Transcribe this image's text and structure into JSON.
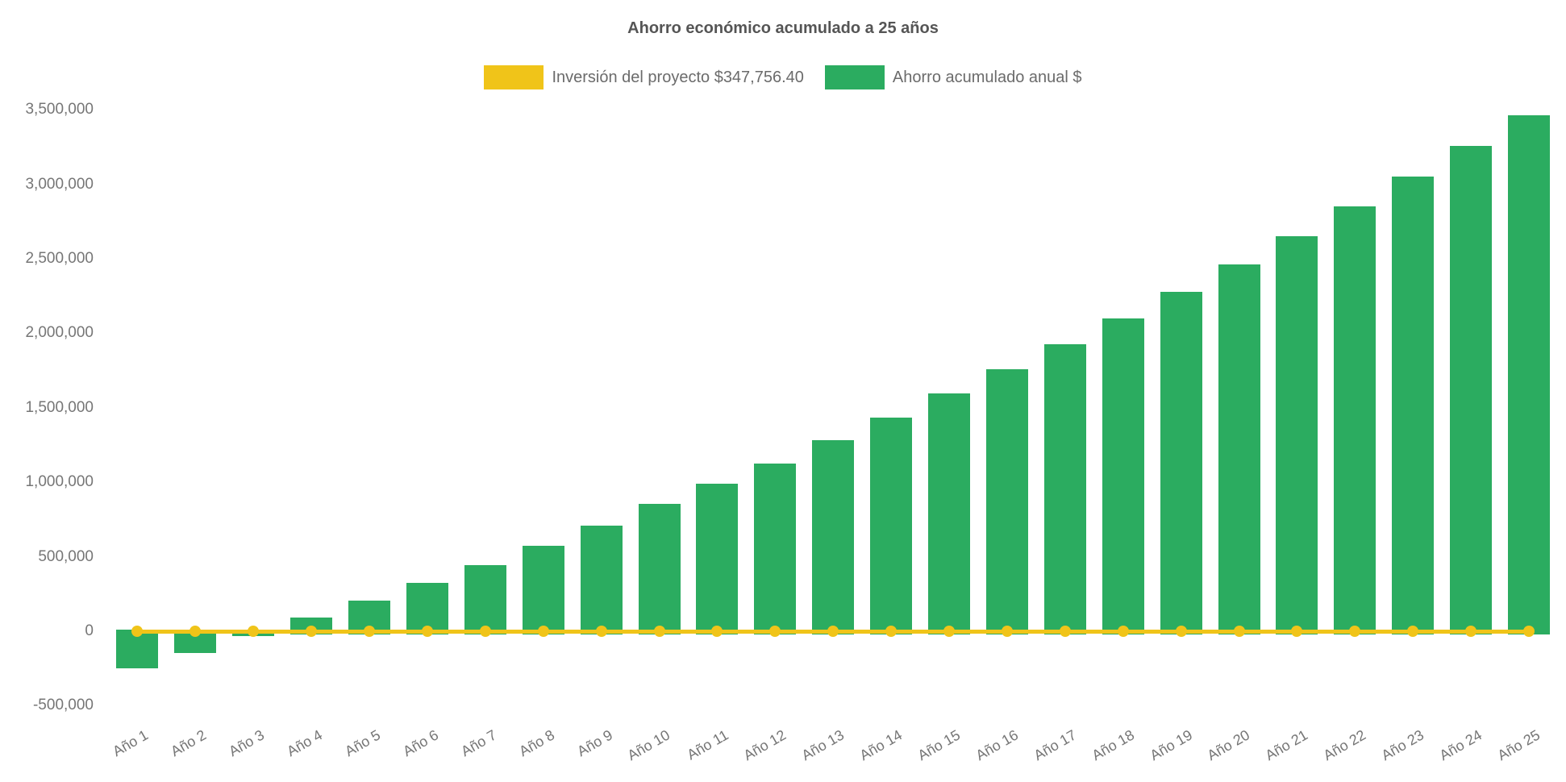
{
  "chart_data": {
    "type": "bar",
    "title": "Ahorro económico acumulado a 25 años",
    "xlabel": "",
    "ylabel": "",
    "categories": [
      "Año 1",
      "Año 2",
      "Año 3",
      "Año 4",
      "Año 5",
      "Año 6",
      "Año 7",
      "Año 8",
      "Año 9",
      "Año 10",
      "Año 11",
      "Año 12",
      "Año 13",
      "Año 14",
      "Año 15",
      "Año 16",
      "Año 17",
      "Año 18",
      "Año 19",
      "Año 20",
      "Año 21",
      "Año 22",
      "Año 23",
      "Año 24",
      "Año 25"
    ],
    "series": [
      {
        "name": "Inversión del proyecto $347,756.40",
        "type": "line",
        "color": "#F0C419",
        "marker": "circle",
        "investment_amount_label": "$347,756.40",
        "values": [
          0,
          0,
          0,
          0,
          0,
          0,
          0,
          0,
          0,
          0,
          0,
          0,
          0,
          0,
          0,
          0,
          0,
          0,
          0,
          0,
          0,
          0,
          0,
          0,
          0
        ]
      },
      {
        "name": "Ahorro acumulado anual $",
        "type": "column",
        "color": "#2BAC60",
        "values": [
          -250000,
          -145000,
          -35000,
          90000,
          205000,
          325000,
          445000,
          575000,
          710000,
          855000,
          990000,
          1125000,
          1280000,
          1435000,
          1595000,
          1760000,
          1925000,
          2100000,
          2280000,
          2460000,
          2650000,
          2850000,
          3050000,
          3255000,
          3465000
        ]
      }
    ],
    "ylim": [
      -500000,
      3500000
    ],
    "ytick_step": 500000,
    "yticks": [
      3500000,
      3000000,
      2500000,
      2000000,
      1500000,
      1000000,
      500000,
      0,
      -500000
    ],
    "ytick_labels": [
      "3,500,000",
      "3,000,000",
      "2,500,000",
      "2,000,000",
      "1,500,000",
      "1,000,000",
      "500,000",
      "0",
      "-500,000"
    ],
    "grid": false,
    "axis_lines": false,
    "legend_position": "top",
    "x_label_rotation_deg": -30,
    "text_color_title": "#555555",
    "text_color_axis": "#767676"
  }
}
